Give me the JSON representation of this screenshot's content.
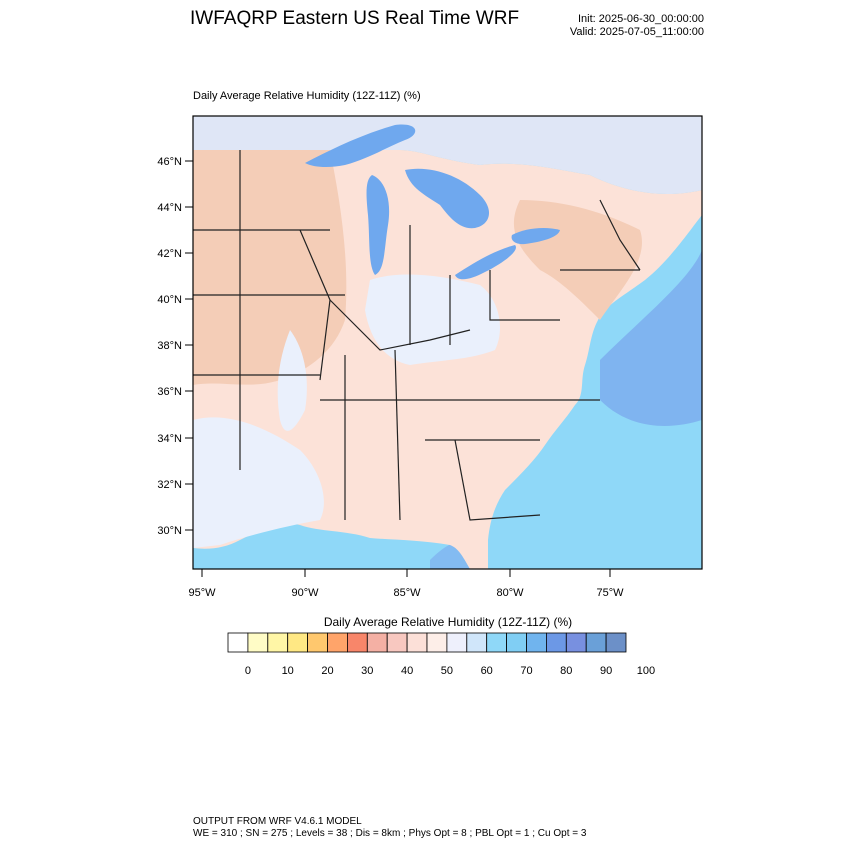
{
  "header": {
    "title": "IWFAQRP Eastern US Real Time WRF",
    "init": "Init: 2025-06-30_00:00:00",
    "valid": "Valid: 2025-07-05_11:00:00"
  },
  "map": {
    "field_title": "Daily Average Relative Humidity (12Z-11Z)   (%)",
    "lat_labels": [
      "46°N",
      "44°N",
      "42°N",
      "40°N",
      "38°N",
      "36°N",
      "34°N",
      "32°N",
      "30°N"
    ],
    "lon_labels": [
      "95°W",
      "90°W",
      "85°W",
      "80°W",
      "75°W"
    ],
    "colors": {
      "ocean": "#8fd8f8",
      "ocean_deep": "#7fb4f0",
      "land_dry": "#f4cdb7",
      "land_mid": "#fce2d8",
      "land_moist": "#eaf0fc",
      "lake": "#6fa8ee",
      "canada_north": "#dfe6f6"
    }
  },
  "colorbar": {
    "title": "Daily Average Relative Humidity (12Z-11Z)  (%)",
    "colors": [
      "#ffffff",
      "#fffcc6",
      "#fff6a6",
      "#ffe884",
      "#ffc86e",
      "#ffa46a",
      "#f8866a",
      "#f4b0a4",
      "#f8c8c0",
      "#fce0d8",
      "#fdeee8",
      "#eef0fc",
      "#d0e6fa",
      "#8fd8f8",
      "#80cef4",
      "#70b4ee",
      "#6c98e6",
      "#7890e0",
      "#6aa0d8",
      "#6c90c8"
    ],
    "tick_labels": [
      "0",
      "10",
      "20",
      "30",
      "40",
      "50",
      "60",
      "70",
      "80",
      "90",
      "100"
    ]
  },
  "footer": {
    "line1": "OUTPUT FROM WRF V4.6.1 MODEL",
    "line2": "WE = 310 ; SN = 275 ; Levels = 38 ; Dis = 8km ; Phys Opt = 8 ; PBL Opt = 1 ; Cu Opt = 3"
  }
}
